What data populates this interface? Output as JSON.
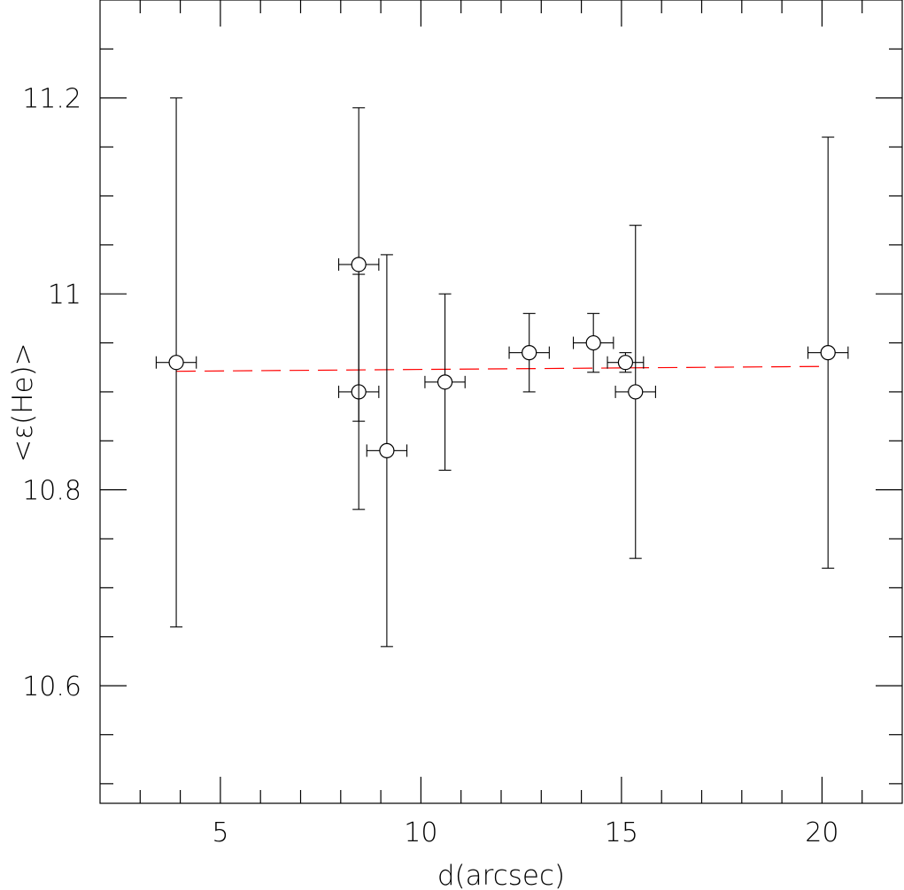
{
  "chart_data": {
    "type": "scatter",
    "xlabel": "d(arcsec)",
    "ylabel": "<ε(He)>",
    "xlim": [
      2,
      22
    ],
    "ylim": [
      10.48,
      11.3
    ],
    "x_major_ticks": [
      5,
      10,
      15,
      20
    ],
    "x_minor_step": 1,
    "y_major_ticks": [
      10.6,
      10.8,
      11.0,
      11.2
    ],
    "y_major_tick_labels": [
      "10.6",
      "10.8",
      "11",
      "11.2"
    ],
    "y_minor_step": 0.05,
    "grid": false,
    "legend": "none",
    "series": [
      {
        "marker": "open-circle",
        "points": [
          {
            "x": 3.9,
            "y": 10.93,
            "xerr": 0.5,
            "yerr_low": 0.27,
            "yerr_high": 0.27
          },
          {
            "x": 8.45,
            "y": 11.03,
            "xerr": 0.5,
            "yerr_low": 0.16,
            "yerr_high": 0.16
          },
          {
            "x": 8.45,
            "y": 10.9,
            "xerr": 0.5,
            "yerr_low": 0.12,
            "yerr_high": 0.12
          },
          {
            "x": 9.15,
            "y": 10.84,
            "xerr": 0.5,
            "yerr_low": 0.2,
            "yerr_high": 0.2
          },
          {
            "x": 10.6,
            "y": 10.91,
            "xerr": 0.5,
            "yerr_low": 0.09,
            "yerr_high": 0.09
          },
          {
            "x": 12.7,
            "y": 10.94,
            "xerr": 0.5,
            "yerr_low": 0.04,
            "yerr_high": 0.04
          },
          {
            "x": 14.3,
            "y": 10.95,
            "xerr": 0.5,
            "yerr_low": 0.03,
            "yerr_high": 0.03
          },
          {
            "x": 15.1,
            "y": 10.93,
            "xerr": 0.45,
            "yerr_low": 0.01,
            "yerr_high": 0.01
          },
          {
            "x": 15.35,
            "y": 10.9,
            "xerr": 0.5,
            "yerr_low": 0.17,
            "yerr_high": 0.17
          },
          {
            "x": 20.15,
            "y": 10.94,
            "xerr": 0.5,
            "yerr_low": 0.22,
            "yerr_high": 0.22
          }
        ]
      }
    ],
    "fit_line": {
      "style": "dashed",
      "color": "#ff0000",
      "x": [
        3.9,
        20.15
      ],
      "y": [
        10.921,
        10.926
      ]
    }
  }
}
